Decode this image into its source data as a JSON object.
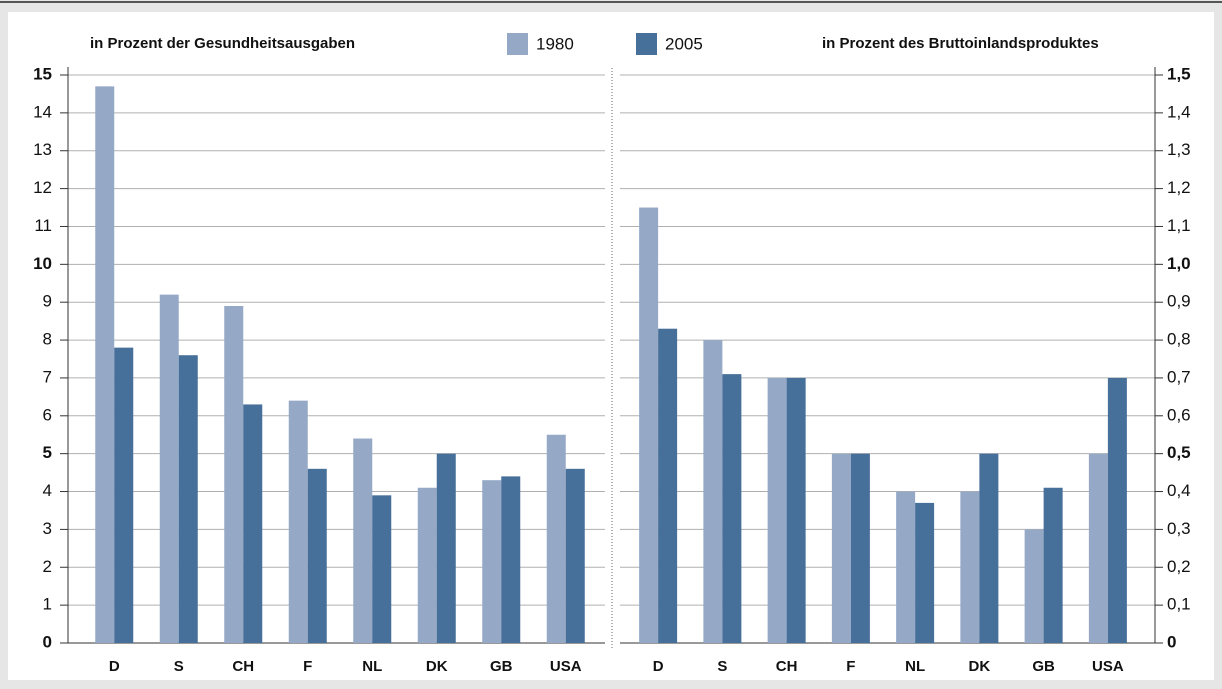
{
  "chart_data": [
    {
      "type": "bar",
      "title": "in Prozent der Gesundheitsausgaben",
      "categories": [
        "D",
        "S",
        "CH",
        "F",
        "NL",
        "DK",
        "GB",
        "USA"
      ],
      "series": [
        {
          "name": "1980",
          "color": "#95a9c7",
          "values": [
            14.7,
            9.2,
            8.9,
            6.4,
            5.4,
            4.1,
            4.3,
            5.5
          ]
        },
        {
          "name": "2005",
          "color": "#466f99",
          "values": [
            7.8,
            7.6,
            6.3,
            4.6,
            3.9,
            5.0,
            4.4,
            4.6
          ]
        }
      ],
      "ylim": [
        0,
        15
      ],
      "yticks": [
        0,
        1,
        2,
        3,
        4,
        5,
        6,
        7,
        8,
        9,
        10,
        11,
        12,
        13,
        14,
        15
      ],
      "grid": true
    },
    {
      "type": "bar",
      "title": "in Prozent des Bruttoinlandsproduktes",
      "categories": [
        "D",
        "S",
        "CH",
        "F",
        "NL",
        "DK",
        "GB",
        "USA"
      ],
      "series": [
        {
          "color": "#95a9c7",
          "values": [
            1.15,
            0.8,
            0.7,
            0.5,
            0.4,
            0.4,
            0.3,
            0.5
          ]
        },
        {
          "color": "#466f99",
          "values": [
            0.83,
            0.71,
            0.7,
            0.5,
            0.37,
            0.5,
            0.41,
            0.7
          ]
        }
      ],
      "ylim": [
        0,
        1.5
      ],
      "yticks": [
        0,
        {
          "value": 0.1,
          "label": "0,1"
        },
        {
          "value": 0.2,
          "label": "0,2"
        },
        {
          "value": 0.3,
          "label": "0,3"
        },
        {
          "value": 0.4,
          "label": "0,4"
        },
        {
          "value": 0.5,
          "label": "0,5"
        },
        {
          "value": 0.6,
          "label": "0,6"
        },
        {
          "value": 0.7,
          "label": "0,7"
        },
        {
          "value": 0.8,
          "label": "0,8"
        },
        {
          "value": 0.9,
          "label": "0,9"
        },
        {
          "value": 1.0,
          "label": "1,0"
        },
        {
          "value": 1.1,
          "label": "1,1"
        },
        {
          "value": 1.2,
          "label": "1,2"
        },
        {
          "value": 1.3,
          "label": "1,3"
        },
        {
          "value": 1.4,
          "label": "1,4"
        },
        {
          "value": 1.5,
          "label": "1,5"
        }
      ],
      "grid": true
    }
  ]
}
